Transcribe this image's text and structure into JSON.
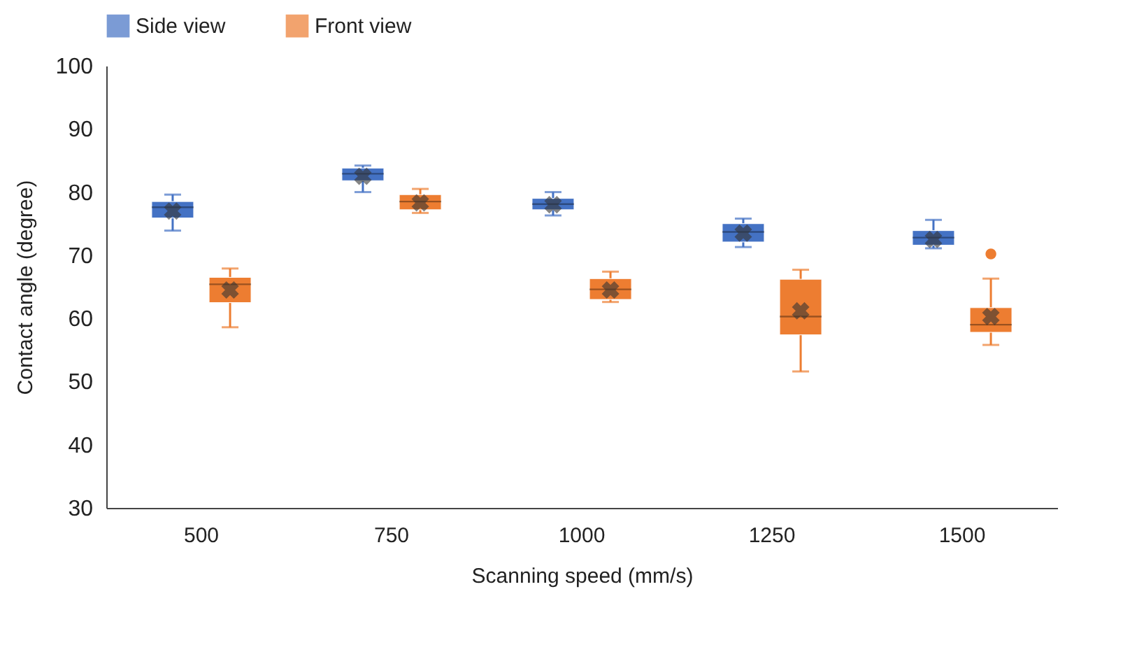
{
  "chart_data": {
    "type": "box",
    "xlabel": "Scanning speed (mm/s)",
    "ylabel": "Contact angle (degree)",
    "categories": [
      "500",
      "750",
      "1000",
      "1250",
      "1500"
    ],
    "ylim": [
      30,
      100
    ],
    "yticks": [
      30,
      40,
      50,
      60,
      70,
      80,
      90,
      100
    ],
    "grid": false,
    "legend": "top",
    "series": [
      {
        "name": "Side view",
        "color": "#4472c4",
        "boxes": [
          {
            "low": 73.9,
            "q1": 75.9,
            "median": 77.6,
            "q3": 78.5,
            "high": 79.6,
            "mean": 77.0
          },
          {
            "low": 80.0,
            "q1": 81.8,
            "median": 82.9,
            "q3": 83.8,
            "high": 84.2,
            "mean": 82.5
          },
          {
            "low": 76.3,
            "q1": 77.2,
            "median": 78.1,
            "q3": 79.0,
            "high": 80.0,
            "mean": 78.0
          },
          {
            "low": 71.3,
            "q1": 72.1,
            "median": 73.7,
            "q3": 75.0,
            "high": 75.8,
            "mean": 73.5
          },
          {
            "low": 71.1,
            "q1": 71.6,
            "median": 72.8,
            "q3": 73.9,
            "high": 75.6,
            "mean": 72.5
          }
        ]
      },
      {
        "name": "Front view",
        "color": "#ed7d31",
        "boxes": [
          {
            "low": 58.6,
            "q1": 62.5,
            "median": 65.4,
            "q3": 66.5,
            "high": 67.9,
            "mean": 64.5
          },
          {
            "low": 76.7,
            "q1": 77.2,
            "median": 78.5,
            "q3": 79.6,
            "high": 80.5,
            "mean": 78.3
          },
          {
            "low": 62.6,
            "q1": 63.0,
            "median": 64.6,
            "q3": 66.3,
            "high": 67.4,
            "mean": 64.5
          },
          {
            "low": 51.6,
            "q1": 57.4,
            "median": 60.3,
            "q3": 66.2,
            "high": 67.7,
            "mean": 61.2
          },
          {
            "low": 55.8,
            "q1": 57.8,
            "median": 59.0,
            "q3": 61.7,
            "high": 66.3,
            "mean": 60.3,
            "outliers": [
              70.2
            ]
          }
        ]
      }
    ]
  }
}
